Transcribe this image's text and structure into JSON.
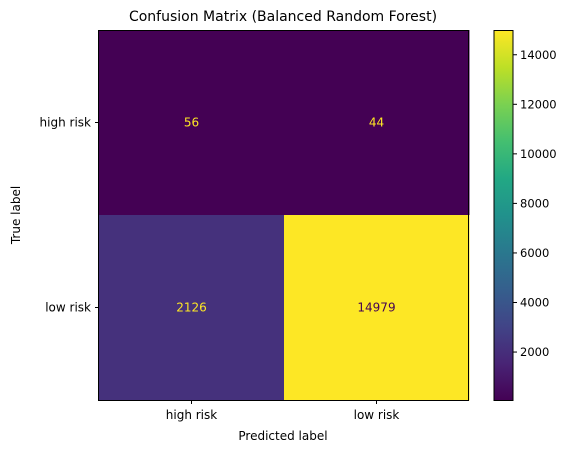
{
  "chart_data": {
    "type": "heatmap",
    "title": "Confusion Matrix (Balanced Random Forest)",
    "xlabel": "Predicted label",
    "ylabel": "True label",
    "x_categories": [
      "high risk",
      "low risk"
    ],
    "y_categories": [
      "high risk",
      "low risk"
    ],
    "values": [
      [
        56,
        44
      ],
      [
        2126,
        14979
      ]
    ],
    "colormap": "viridis",
    "color_range": [
      44,
      14979
    ],
    "colorbar_ticks": [
      2000,
      4000,
      6000,
      8000,
      10000,
      12000,
      14000
    ],
    "colorbar_tick_labels": [
      "2000",
      "4000",
      "6000",
      "8000",
      "10000",
      "12000",
      "14000"
    ],
    "text_color_dark_cell": "#fde725",
    "text_color_light_cell": "#440154",
    "grid": false
  }
}
